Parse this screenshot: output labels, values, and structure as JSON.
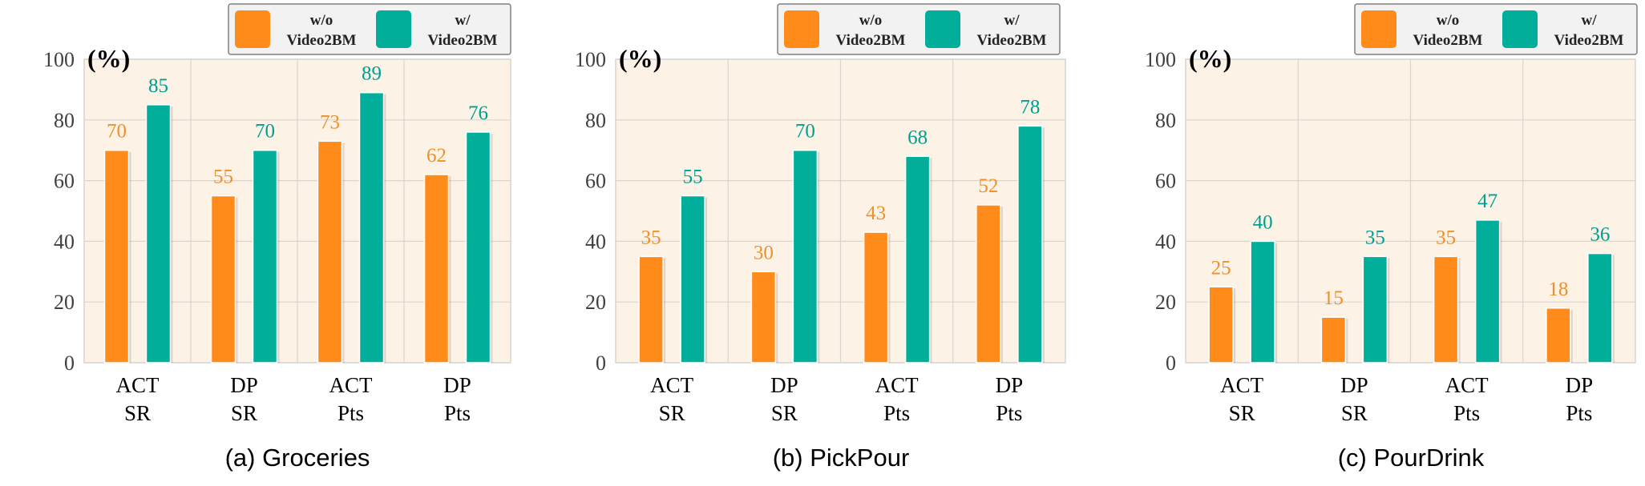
{
  "colors": {
    "without": "#FF8C1A",
    "with": "#00AE9A",
    "without_label": "#F0902A",
    "with_label": "#00A090",
    "plot_bg": "#FDF2E6",
    "grid": "#D9D4CF"
  },
  "legend": {
    "without_label_line1": "w/o",
    "without_label_line2": "Video2BM",
    "with_label_line1": "w/",
    "with_label_line2": "Video2BM"
  },
  "chart_data": [
    {
      "type": "bar",
      "caption": "(a) Groceries",
      "unit_label": "(%)",
      "categories": [
        [
          "ACT",
          "SR"
        ],
        [
          "DP",
          "SR"
        ],
        [
          "ACT",
          "Pts"
        ],
        [
          "DP",
          "Pts"
        ]
      ],
      "series": [
        {
          "name": "w/o Video2BM",
          "values": [
            70,
            55,
            73,
            62
          ]
        },
        {
          "name": "w/ Video2BM",
          "values": [
            85,
            70,
            89,
            76
          ]
        }
      ],
      "ylim": [
        0,
        100
      ],
      "yticks": [
        0,
        20,
        40,
        60,
        80,
        100
      ],
      "grid": true,
      "legend_position": "top-right"
    },
    {
      "type": "bar",
      "caption": "(b) PickPour",
      "unit_label": "(%)",
      "categories": [
        [
          "ACT",
          "SR"
        ],
        [
          "DP",
          "SR"
        ],
        [
          "ACT",
          "Pts"
        ],
        [
          "DP",
          "Pts"
        ]
      ],
      "series": [
        {
          "name": "w/o Video2BM",
          "values": [
            35,
            30,
            43,
            52
          ]
        },
        {
          "name": "w/ Video2BM",
          "values": [
            55,
            70,
            68,
            78
          ]
        }
      ],
      "ylim": [
        0,
        100
      ],
      "yticks": [
        0,
        20,
        40,
        60,
        80,
        100
      ],
      "grid": true,
      "legend_position": "top-right"
    },
    {
      "type": "bar",
      "caption": "(c) PourDrink",
      "unit_label": "(%)",
      "categories": [
        [
          "ACT",
          "SR"
        ],
        [
          "DP",
          "SR"
        ],
        [
          "ACT",
          "Pts"
        ],
        [
          "DP",
          "Pts"
        ]
      ],
      "series": [
        {
          "name": "w/o Video2BM",
          "values": [
            25,
            15,
            35,
            18
          ]
        },
        {
          "name": "w/ Video2BM",
          "values": [
            40,
            35,
            47,
            36
          ]
        }
      ],
      "ylim": [
        0,
        100
      ],
      "yticks": [
        0,
        20,
        40,
        60,
        80,
        100
      ],
      "grid": true,
      "legend_position": "top-right"
    }
  ]
}
